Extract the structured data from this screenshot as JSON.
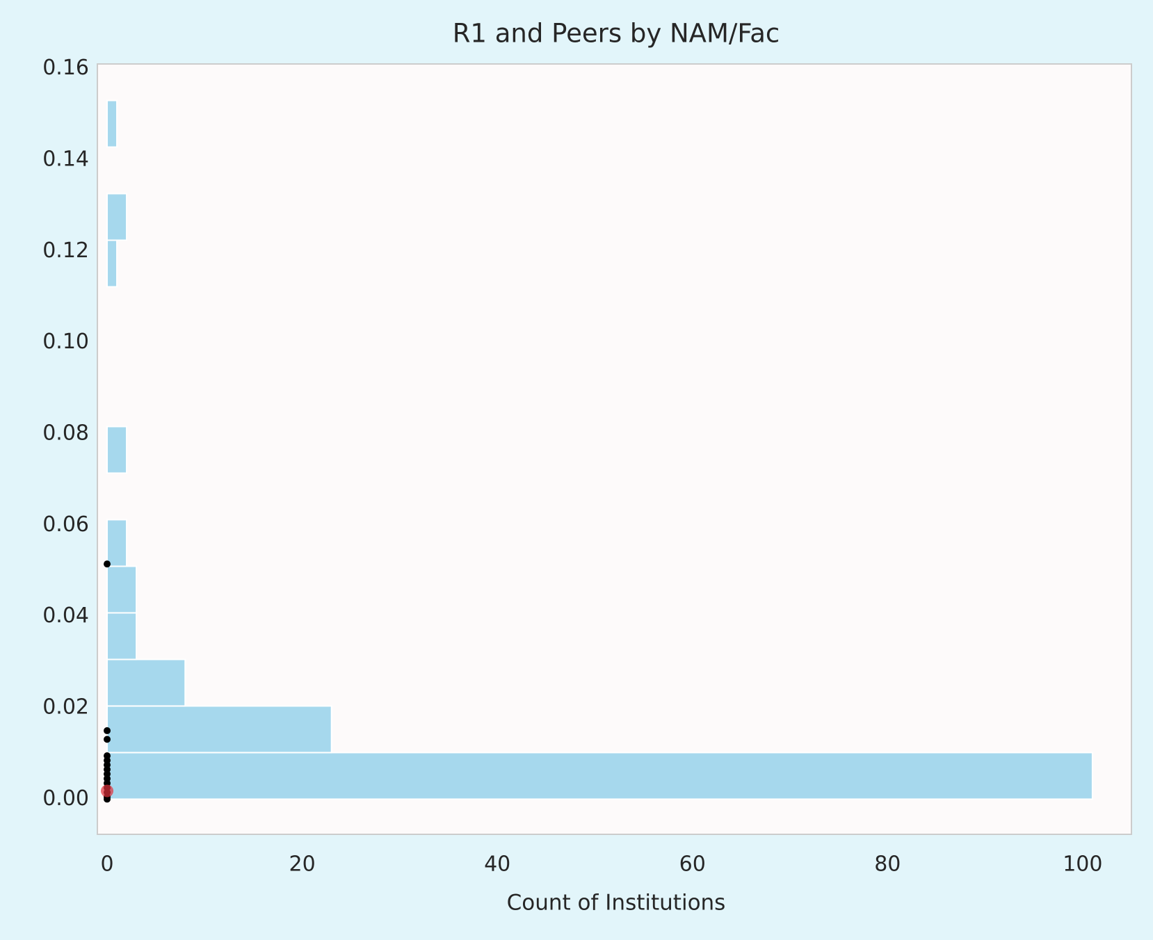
{
  "chart_data": {
    "type": "histogram",
    "orientation": "horizontal",
    "title": "R1 and Peers by NAM/Fac",
    "xlabel": "Count of Institutions",
    "bins": [
      0,
      0.0102,
      0.0204,
      0.0306,
      0.0408,
      0.051,
      0.0612,
      0.0714,
      0.0816,
      0.0918,
      0.102,
      0.1122,
      0.1224,
      0.1326,
      0.1428,
      0.153
    ],
    "counts": [
      101,
      23,
      8,
      3,
      3,
      2,
      0,
      2,
      0,
      0,
      0,
      1,
      2,
      0,
      1
    ],
    "color": "#a6d8ed",
    "xlim": [
      -1,
      105
    ],
    "xticks": [
      0,
      20,
      40,
      60,
      80,
      100
    ],
    "ylim": [
      -0.0077,
      0.161
    ],
    "yticks": [
      {
        "value": 0,
        "label": "0.00"
      },
      {
        "value": 0.02,
        "label": "0.02"
      },
      {
        "value": 0.04,
        "label": "0.04"
      },
      {
        "value": 0.06,
        "label": "0.06"
      },
      {
        "value": 0.08,
        "label": "0.08"
      },
      {
        "value": 0.1,
        "label": "0.10"
      },
      {
        "value": 0.12,
        "label": "0.12"
      },
      {
        "value": 0.14,
        "label": "0.14"
      },
      {
        "value": 0.16,
        "label": "0.16"
      }
    ],
    "grid": false,
    "overlays": [
      {
        "type": "scatter",
        "color": "#000000",
        "size": 5,
        "x": [
          0,
          0,
          0,
          0,
          0,
          0,
          0,
          0,
          0,
          0,
          0,
          0,
          0,
          0
        ],
        "y": [
          0.0515,
          0.015,
          0.0131,
          0.0095,
          0.0085,
          0.0075,
          0.0065,
          0.0055,
          0.0045,
          0.0035,
          0.0025,
          0.0015,
          0.0005,
          0
        ]
      },
      {
        "type": "scatter",
        "color": "#e0303a",
        "size": 9,
        "x": [
          0
        ],
        "y": [
          0.0018
        ]
      }
    ]
  }
}
